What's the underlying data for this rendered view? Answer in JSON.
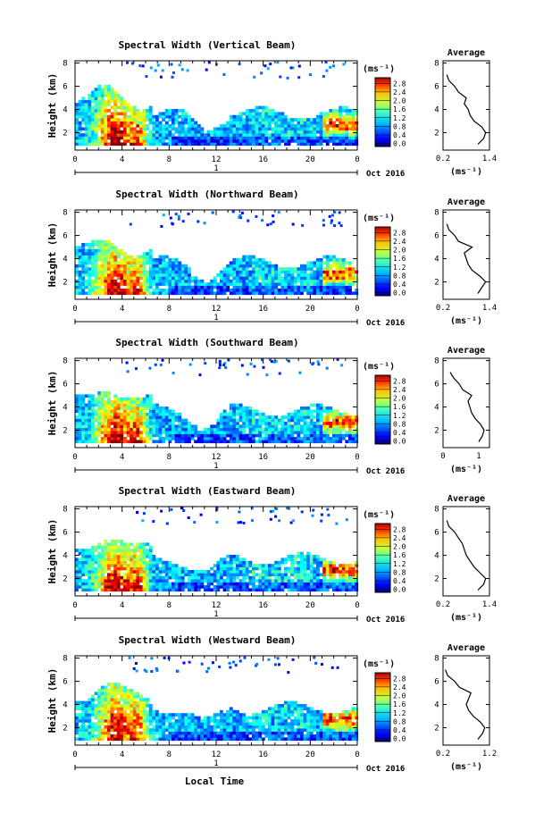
{
  "figure": {
    "xlabel_bottom": "Local Time",
    "date_label": "Oct 2016",
    "day_label": "1",
    "colorbar_unit": "(ms⁻¹)",
    "avg_unit": "(ms⁻¹)"
  },
  "chart_data": [
    {
      "type": "heatmap",
      "title": "Spectral Width (Vertical Beam)",
      "ylabel": "Height (km)",
      "xlabel": "Local Time",
      "x_ticks": [
        "0",
        "4",
        "8",
        "12",
        "16",
        "20",
        "0"
      ],
      "y_ticks": [
        "2",
        "4",
        "6",
        "8"
      ],
      "xlim": [
        0,
        24
      ],
      "ylim": [
        0.5,
        8.2
      ],
      "colorbar": {
        "ticks": [
          "0.0",
          "0.4",
          "0.8",
          "1.2",
          "1.6",
          "2.0",
          "2.4",
          "2.8"
        ],
        "range": [
          0,
          3.0
        ]
      },
      "average_profile": {
        "title": "Average",
        "xlim": [
          0.2,
          1.4
        ],
        "x_ticks": [
          "0.2",
          "1.4"
        ],
        "y_ticks": [
          "2",
          "4",
          "6",
          "8"
        ],
        "heights": [
          1.0,
          1.5,
          2.0,
          2.5,
          3.0,
          3.5,
          4.0,
          4.5,
          5.0,
          5.5,
          6.0,
          6.5,
          7.0
        ],
        "values": [
          1.1,
          1.25,
          1.3,
          1.2,
          1.0,
          0.9,
          0.85,
          0.75,
          0.8,
          0.6,
          0.5,
          0.35,
          0.3
        ]
      }
    },
    {
      "type": "heatmap",
      "title": "Spectral Width (Northward Beam)",
      "ylabel": "Height (km)",
      "xlabel": "Local Time",
      "x_ticks": [
        "0",
        "4",
        "8",
        "12",
        "16",
        "20",
        "0"
      ],
      "y_ticks": [
        "2",
        "4",
        "6",
        "8"
      ],
      "xlim": [
        0,
        24
      ],
      "ylim": [
        0.5,
        8.2
      ],
      "colorbar": {
        "ticks": [
          "0.0",
          "0.4",
          "0.8",
          "1.2",
          "1.6",
          "2.0",
          "2.4",
          "2.8"
        ],
        "range": [
          0,
          3.0
        ]
      },
      "average_profile": {
        "title": "Average",
        "xlim": [
          0.2,
          1.4
        ],
        "x_ticks": [
          "0.2",
          "1.4"
        ],
        "y_ticks": [
          "2",
          "4",
          "6",
          "8"
        ],
        "heights": [
          1.0,
          1.5,
          2.0,
          2.5,
          3.0,
          3.5,
          4.0,
          4.5,
          5.0,
          5.5,
          6.0,
          6.5,
          7.0
        ],
        "values": [
          1.1,
          1.2,
          1.3,
          1.15,
          0.95,
          0.85,
          0.8,
          0.75,
          0.95,
          0.6,
          0.5,
          0.35,
          0.3
        ]
      }
    },
    {
      "type": "heatmap",
      "title": "Spectral Width (Southward Beam)",
      "ylabel": "Height (km)",
      "xlabel": "Local Time",
      "x_ticks": [
        "0",
        "4",
        "8",
        "12",
        "16",
        "20",
        "0"
      ],
      "y_ticks": [
        "2",
        "4",
        "6",
        "8"
      ],
      "xlim": [
        0,
        24
      ],
      "ylim": [
        0.5,
        8.2
      ],
      "colorbar": {
        "ticks": [
          "0.0",
          "0.4",
          "0.8",
          "1.2",
          "1.6",
          "2.0",
          "2.4",
          "2.8"
        ],
        "range": [
          0,
          3.0
        ]
      },
      "average_profile": {
        "title": "Average",
        "xlim": [
          0,
          1.3
        ],
        "x_ticks": [
          "0",
          "1"
        ],
        "y_ticks": [
          "2",
          "4",
          "6",
          "8"
        ],
        "heights": [
          1.0,
          1.5,
          2.0,
          2.5,
          3.0,
          3.5,
          4.0,
          4.5,
          5.0,
          5.5,
          6.0,
          6.5,
          7.0
        ],
        "values": [
          1.0,
          1.1,
          1.15,
          1.05,
          0.9,
          0.8,
          0.75,
          0.7,
          0.8,
          0.55,
          0.45,
          0.3,
          0.2
        ]
      }
    },
    {
      "type": "heatmap",
      "title": "Spectral Width (Eastward Beam)",
      "ylabel": "Height (km)",
      "xlabel": "Local Time",
      "x_ticks": [
        "0",
        "4",
        "8",
        "12",
        "16",
        "20",
        "0"
      ],
      "y_ticks": [
        "2",
        "4",
        "6",
        "8"
      ],
      "xlim": [
        0,
        24
      ],
      "ylim": [
        0.5,
        8.2
      ],
      "colorbar": {
        "ticks": [
          "0.0",
          "0.4",
          "0.8",
          "1.2",
          "1.6",
          "2.0",
          "2.4",
          "2.8"
        ],
        "range": [
          0,
          3.0
        ]
      },
      "average_profile": {
        "title": "Average",
        "xlim": [
          0.2,
          1.4
        ],
        "x_ticks": [
          "0.2",
          "1.4"
        ],
        "y_ticks": [
          "2",
          "4",
          "6",
          "8"
        ],
        "heights": [
          1.0,
          1.5,
          2.0,
          2.5,
          3.0,
          3.5,
          4.0,
          4.5,
          5.0,
          5.5,
          6.0,
          6.5,
          7.0
        ],
        "values": [
          1.1,
          1.25,
          1.3,
          1.15,
          1.0,
          0.9,
          0.8,
          0.75,
          0.7,
          0.6,
          0.5,
          0.35,
          0.3
        ]
      }
    },
    {
      "type": "heatmap",
      "title": "Spectral Width (Westward Beam)",
      "ylabel": "Height (km)",
      "xlabel": "Local Time",
      "x_ticks": [
        "0",
        "4",
        "8",
        "12",
        "16",
        "20",
        "0"
      ],
      "y_ticks": [
        "2",
        "4",
        "6",
        "8"
      ],
      "xlim": [
        0,
        24
      ],
      "ylim": [
        0.5,
        8.2
      ],
      "colorbar": {
        "ticks": [
          "0.0",
          "0.4",
          "0.8",
          "1.2",
          "1.6",
          "2.0",
          "2.4",
          "2.8"
        ],
        "range": [
          0,
          3.0
        ]
      },
      "average_profile": {
        "title": "Average",
        "xlim": [
          0.2,
          1.2
        ],
        "x_ticks": [
          "0.2",
          "1.2"
        ],
        "y_ticks": [
          "2",
          "4",
          "6",
          "8"
        ],
        "heights": [
          1.0,
          1.5,
          2.0,
          2.5,
          3.0,
          3.5,
          4.0,
          4.5,
          5.0,
          5.5,
          6.0,
          6.5,
          7.0
        ],
        "values": [
          0.95,
          1.05,
          1.1,
          1.0,
          0.85,
          0.75,
          0.7,
          0.75,
          0.8,
          0.55,
          0.45,
          0.3,
          0.25
        ]
      }
    }
  ]
}
